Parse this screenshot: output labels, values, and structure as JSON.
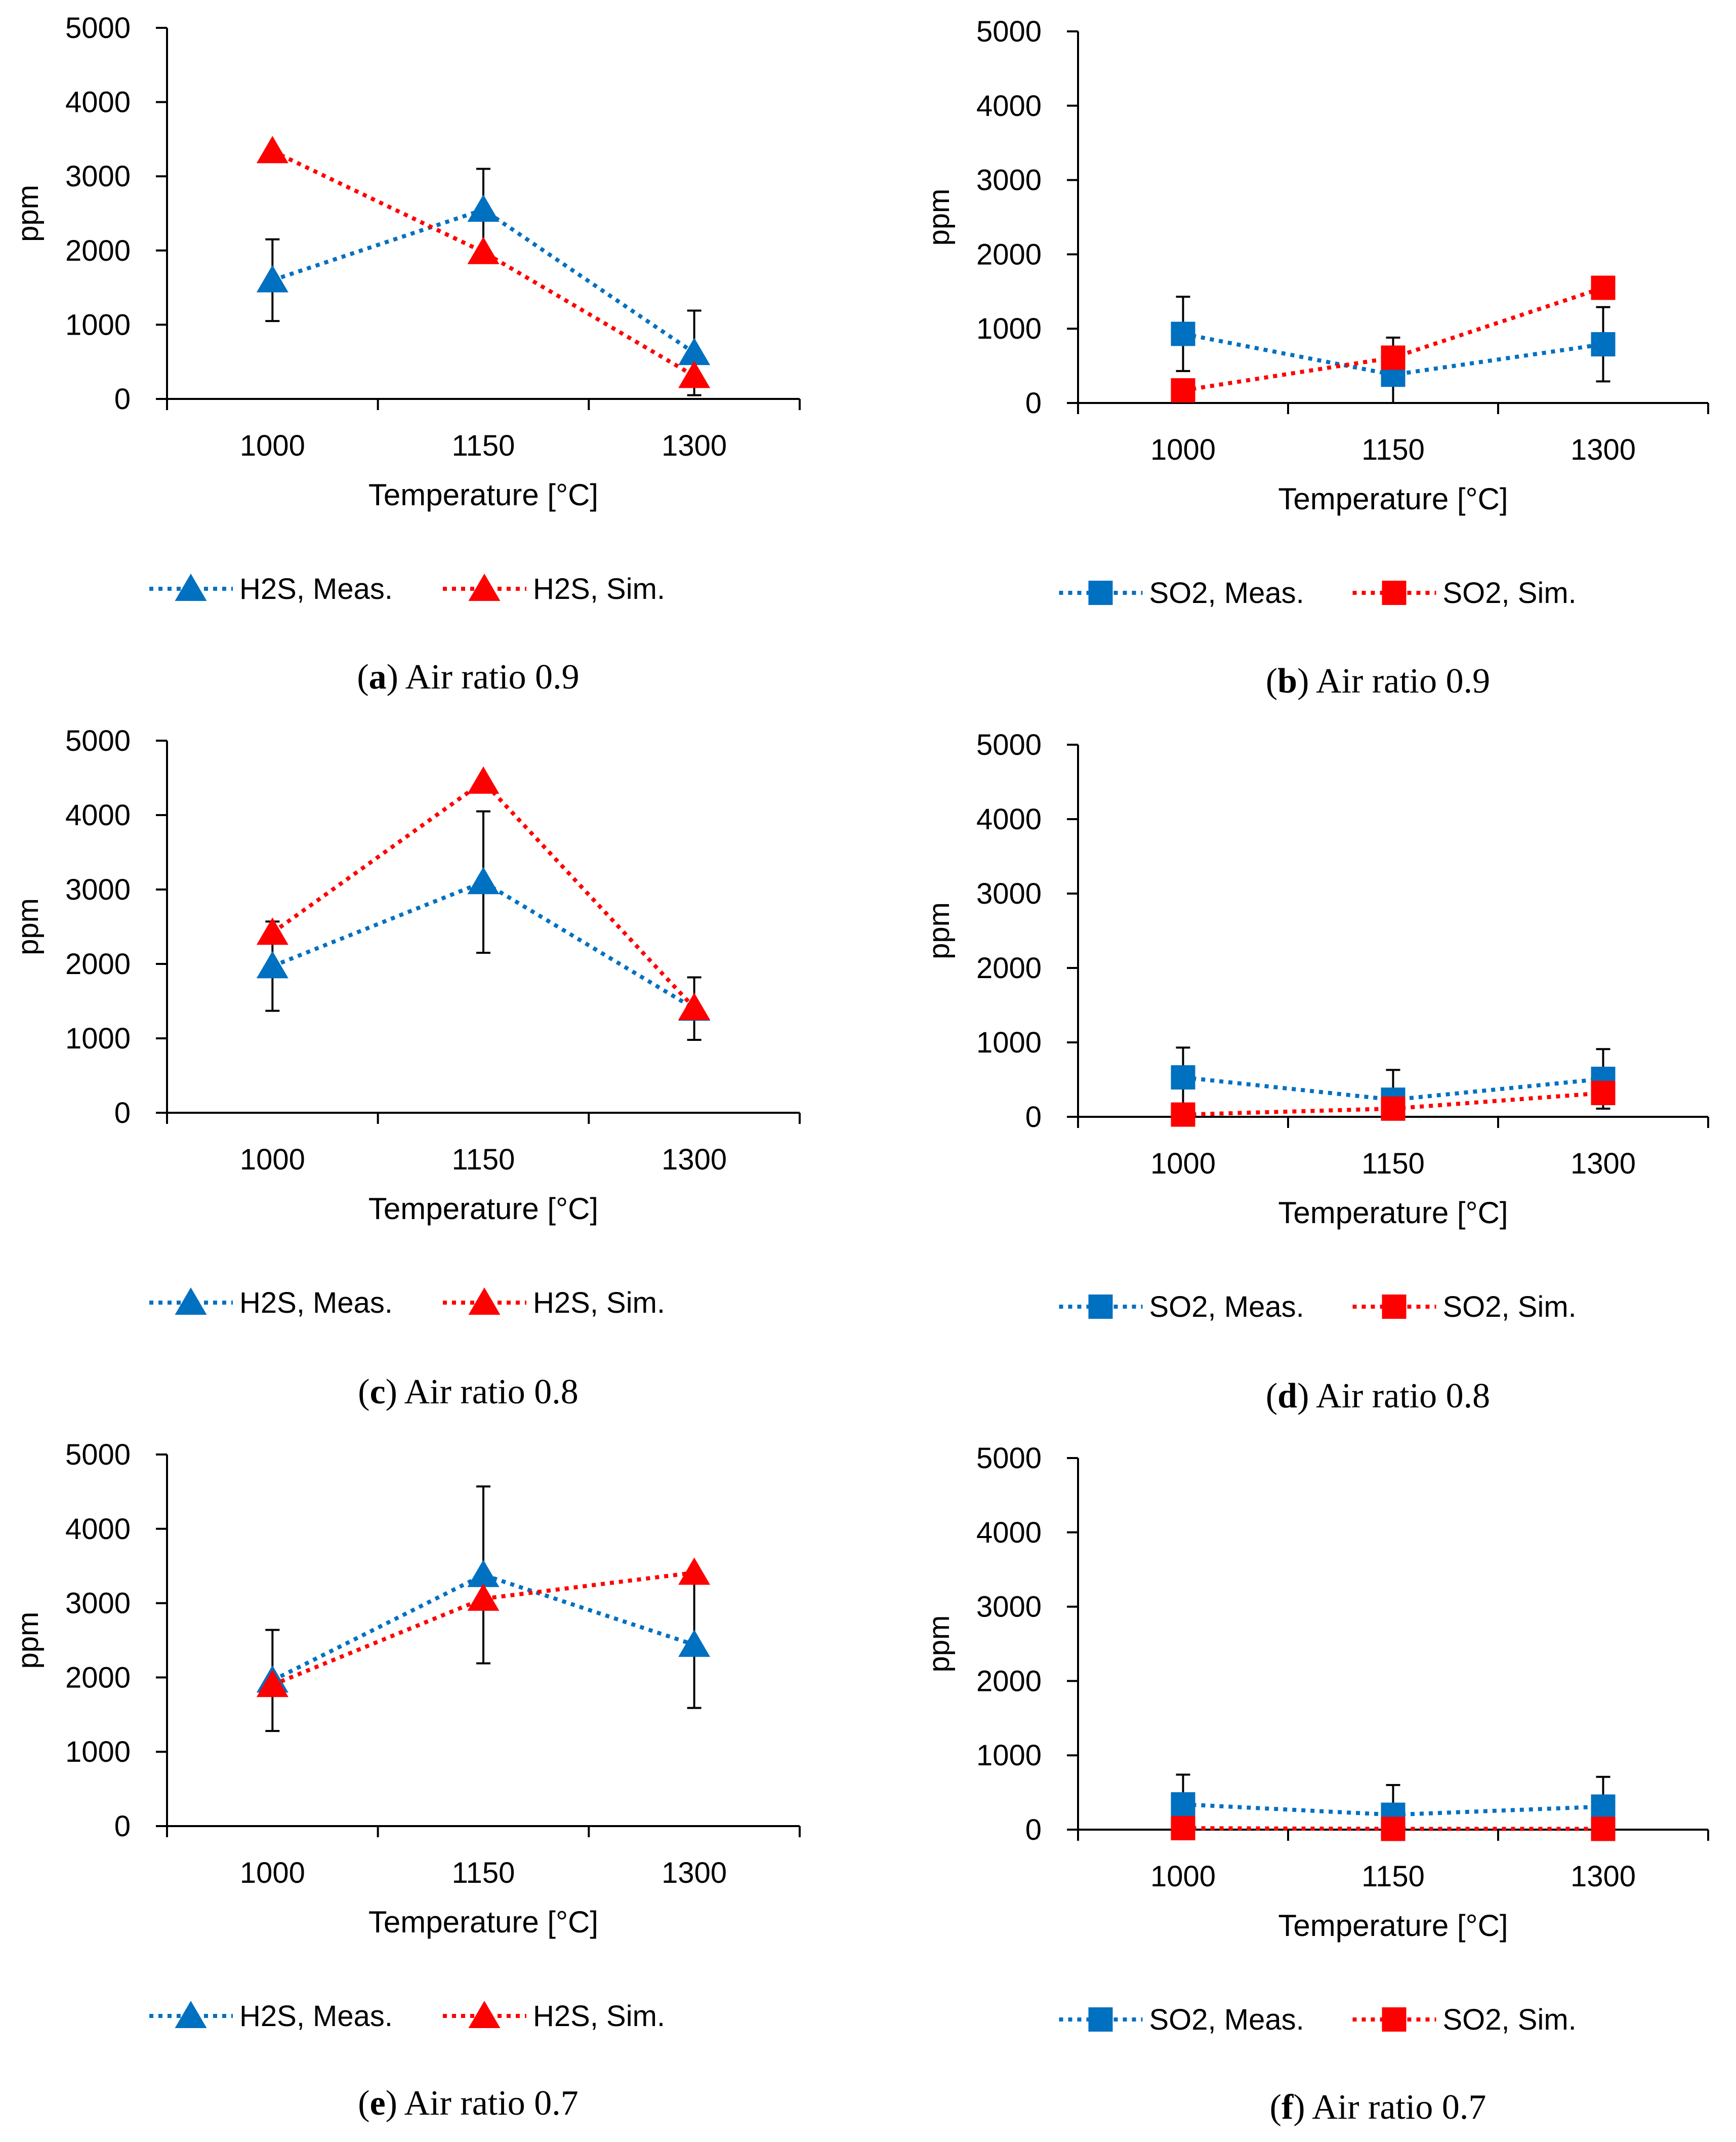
{
  "colors": {
    "meas": "#0070C0",
    "sim": "#FF0000",
    "axis": "#000000"
  },
  "chart_data": [
    {
      "type": "line",
      "caption_letter": "a",
      "caption_text": "Air ratio 0.9",
      "xlabel": "Temperature [°C]",
      "ylabel": "ppm",
      "categories": [
        "1000",
        "1150",
        "1300"
      ],
      "ylim": [
        0,
        5000
      ],
      "yticks": [
        "0",
        "1000",
        "2000",
        "3000",
        "4000",
        "5000"
      ],
      "marker": "triangle",
      "series": [
        {
          "name": "H2S, Meas.",
          "role": "meas",
          "values": [
            1600,
            2550,
            620
          ],
          "err": [
            550,
            550,
            570
          ]
        },
        {
          "name": "H2S, Sim.",
          "role": "sim",
          "values": [
            3340,
            1980,
            310
          ],
          "err": [
            0,
            0,
            0
          ]
        }
      ]
    },
    {
      "type": "line",
      "caption_letter": "b",
      "caption_text": "Air ratio 0.9",
      "xlabel": "Temperature [°C]",
      "ylabel": "ppm",
      "categories": [
        "1000",
        "1150",
        "1300"
      ],
      "ylim": [
        0,
        5000
      ],
      "yticks": [
        "0",
        "1000",
        "2000",
        "3000",
        "4000",
        "5000"
      ],
      "marker": "square",
      "series": [
        {
          "name": "SO2, Meas.",
          "role": "meas",
          "values": [
            930,
            380,
            790
          ],
          "err": [
            500,
            500,
            500
          ]
        },
        {
          "name": "SO2, Sim.",
          "role": "sim",
          "values": [
            170,
            610,
            1550
          ],
          "err": [
            0,
            0,
            0
          ]
        }
      ]
    },
    {
      "type": "line",
      "caption_letter": "c",
      "caption_text": "Air ratio 0.8",
      "xlabel": "Temperature [°C]",
      "ylabel": "ppm",
      "categories": [
        "1000",
        "1150",
        "1300"
      ],
      "ylim": [
        0,
        5000
      ],
      "yticks": [
        "0",
        "1000",
        "2000",
        "3000",
        "4000",
        "5000"
      ],
      "marker": "triangle",
      "series": [
        {
          "name": "H2S, Meas.",
          "role": "meas",
          "values": [
            1970,
            3100,
            1400
          ],
          "err": [
            600,
            950,
            420
          ]
        },
        {
          "name": "H2S, Sim.",
          "role": "sim",
          "values": [
            2420,
            4450,
            1410
          ],
          "err": [
            0,
            0,
            0
          ]
        }
      ]
    },
    {
      "type": "line",
      "caption_letter": "d",
      "caption_text": "Air ratio 0.8",
      "xlabel": "Temperature [°C]",
      "ylabel": "ppm",
      "categories": [
        "1000",
        "1150",
        "1300"
      ],
      "ylim": [
        0,
        5000
      ],
      "yticks": [
        "0",
        "1000",
        "2000",
        "3000",
        "4000",
        "5000"
      ],
      "marker": "square",
      "series": [
        {
          "name": "SO2, Meas.",
          "role": "meas",
          "values": [
            530,
            230,
            510
          ],
          "err": [
            400,
            400,
            400
          ]
        },
        {
          "name": "SO2, Sim.",
          "role": "sim",
          "values": [
            30,
            110,
            320
          ],
          "err": [
            0,
            0,
            0
          ]
        }
      ]
    },
    {
      "type": "line",
      "caption_letter": "e",
      "caption_text": "Air ratio 0.7",
      "xlabel": "Temperature [°C]",
      "ylabel": "ppm",
      "categories": [
        "1000",
        "1150",
        "1300"
      ],
      "ylim": [
        0,
        5000
      ],
      "yticks": [
        "0",
        "1000",
        "2000",
        "3000",
        "4000",
        "5000"
      ],
      "marker": "triangle",
      "series": [
        {
          "name": "H2S, Meas.",
          "role": "meas",
          "values": [
            1960,
            3380,
            2440
          ],
          "err": [
            680,
            1190,
            850
          ]
        },
        {
          "name": "H2S, Sim.",
          "role": "sim",
          "values": [
            1900,
            3060,
            3410
          ],
          "err": [
            0,
            0,
            0
          ]
        }
      ]
    },
    {
      "type": "line",
      "caption_letter": "f",
      "caption_text": "Air ratio 0.7",
      "xlabel": "Temperature [°C]",
      "ylabel": "ppm",
      "categories": [
        "1000",
        "1150",
        "1300"
      ],
      "ylim": [
        0,
        5000
      ],
      "yticks": [
        "0",
        "1000",
        "2000",
        "3000",
        "4000",
        "5000"
      ],
      "marker": "square",
      "series": [
        {
          "name": "SO2, Meas.",
          "role": "meas",
          "values": [
            340,
            200,
            310
          ],
          "err": [
            400,
            400,
            400
          ]
        },
        {
          "name": "SO2, Sim.",
          "role": "sim",
          "values": [
            20,
            10,
            10
          ],
          "err": [
            0,
            0,
            0
          ]
        }
      ]
    }
  ]
}
